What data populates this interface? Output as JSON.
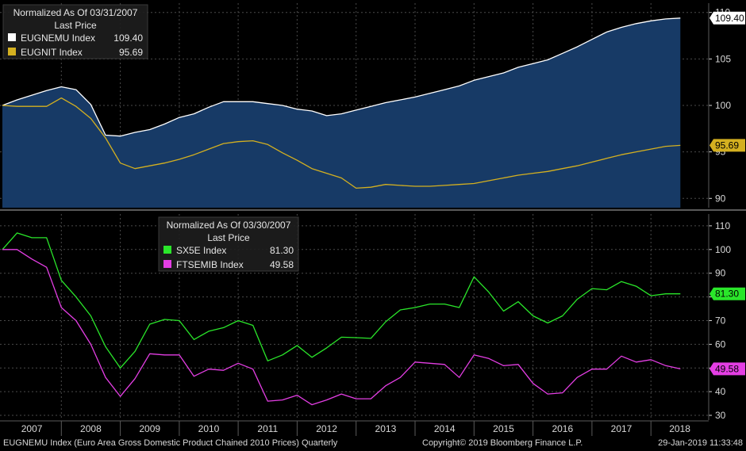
{
  "chart_data": [
    {
      "type": "area",
      "title": "Normalized As Of 03/31/2007",
      "subtitle": "Last Price",
      "ylim": [
        89,
        111
      ],
      "yticks": [
        90,
        95,
        100,
        105,
        110
      ],
      "x": [
        2007.0,
        2007.25,
        2007.5,
        2007.75,
        2008.0,
        2008.25,
        2008.5,
        2008.75,
        2009.0,
        2009.25,
        2009.5,
        2009.75,
        2010.0,
        2010.25,
        2010.5,
        2010.75,
        2011.0,
        2011.25,
        2011.5,
        2011.75,
        2012.0,
        2012.25,
        2012.5,
        2012.75,
        2013.0,
        2013.25,
        2013.5,
        2013.75,
        2014.0,
        2014.25,
        2014.5,
        2014.75,
        2015.0,
        2015.25,
        2015.5,
        2015.75,
        2016.0,
        2016.25,
        2016.5,
        2016.75,
        2017.0,
        2017.25,
        2017.5,
        2017.75,
        2018.0,
        2018.25,
        2018.5
      ],
      "series": [
        {
          "name": "EUGNEMU Index",
          "last": "109.40",
          "color": "#ffffff",
          "fill": "#173a66",
          "values": [
            100.0,
            100.6,
            101.1,
            101.6,
            102.0,
            101.7,
            100.1,
            96.8,
            96.7,
            97.1,
            97.4,
            98.0,
            98.7,
            99.1,
            99.8,
            100.4,
            100.4,
            100.4,
            100.2,
            100.0,
            99.6,
            99.4,
            98.9,
            99.1,
            99.5,
            99.9,
            100.3,
            100.6,
            100.9,
            101.3,
            101.7,
            102.1,
            102.7,
            103.1,
            103.5,
            104.1,
            104.5,
            104.9,
            105.6,
            106.3,
            107.1,
            107.9,
            108.4,
            108.8,
            109.1,
            109.3,
            109.4
          ]
        },
        {
          "name": "EUGNIT Index",
          "last": "95.69",
          "color": "#d4b020",
          "values": [
            100.0,
            99.9,
            99.9,
            99.9,
            100.8,
            99.9,
            98.6,
            96.5,
            93.8,
            93.2,
            93.5,
            93.8,
            94.2,
            94.7,
            95.3,
            95.9,
            96.1,
            96.2,
            95.8,
            94.9,
            94.1,
            93.2,
            92.7,
            92.2,
            91.1,
            91.2,
            91.5,
            91.4,
            91.3,
            91.3,
            91.4,
            91.5,
            91.6,
            91.9,
            92.2,
            92.5,
            92.7,
            92.9,
            93.2,
            93.5,
            93.9,
            94.3,
            94.7,
            95.0,
            95.3,
            95.6,
            95.7
          ]
        }
      ]
    },
    {
      "type": "line",
      "title": "Normalized As Of 03/30/2007",
      "subtitle": "Last Price",
      "ylim": [
        28,
        115
      ],
      "yticks": [
        30,
        40,
        50,
        60,
        70,
        80,
        90,
        100,
        110
      ],
      "x": [
        2007.0,
        2007.25,
        2007.5,
        2007.75,
        2008.0,
        2008.25,
        2008.5,
        2008.75,
        2009.0,
        2009.25,
        2009.5,
        2009.75,
        2010.0,
        2010.25,
        2010.5,
        2010.75,
        2011.0,
        2011.25,
        2011.5,
        2011.75,
        2012.0,
        2012.25,
        2012.5,
        2012.75,
        2013.0,
        2013.25,
        2013.5,
        2013.75,
        2014.0,
        2014.25,
        2014.5,
        2014.75,
        2015.0,
        2015.25,
        2015.5,
        2015.75,
        2016.0,
        2016.25,
        2016.5,
        2016.75,
        2017.0,
        2017.25,
        2017.5,
        2017.75,
        2018.0,
        2018.25,
        2018.5
      ],
      "series": [
        {
          "name": "SX5E Index",
          "last": "81.30",
          "color": "#2ae62a",
          "values": [
            100.0,
            107.0,
            105.0,
            105.0,
            87.0,
            80.0,
            72.0,
            59.0,
            50.0,
            57.0,
            68.5,
            70.5,
            70.0,
            62.0,
            65.5,
            67.0,
            70.0,
            68.0,
            53.0,
            55.5,
            59.5,
            54.5,
            58.5,
            63.0,
            62.8,
            62.5,
            69.5,
            74.5,
            75.5,
            77.0,
            77.0,
            75.5,
            88.5,
            82.0,
            74.0,
            78.0,
            72.0,
            69.0,
            72.0,
            79.0,
            83.5,
            83.0,
            86.5,
            84.5,
            80.5,
            81.3,
            81.3
          ]
        },
        {
          "name": "FTSEMIB Index",
          "last": "49.58",
          "color": "#e43ee4",
          "values": [
            100.0,
            100.0,
            96.0,
            92.5,
            75.5,
            70.0,
            60.0,
            46.0,
            38.0,
            45.5,
            56.0,
            55.5,
            55.5,
            46.5,
            49.5,
            49.0,
            52.0,
            49.5,
            36.0,
            36.5,
            38.5,
            34.5,
            36.5,
            39.0,
            37.0,
            37.0,
            42.5,
            46.0,
            52.5,
            52.0,
            51.5,
            46.0,
            55.5,
            54.0,
            51.0,
            51.5,
            43.5,
            39.0,
            39.5,
            46.0,
            49.5,
            49.5,
            55.0,
            52.5,
            53.5,
            51.0,
            49.6
          ]
        }
      ]
    }
  ],
  "x_axis": {
    "tick_labels": [
      "2007",
      "2008",
      "2009",
      "2010",
      "2011",
      "2012",
      "2013",
      "2014",
      "2015",
      "2016",
      "2017",
      "2018"
    ]
  },
  "footer": {
    "left": "EUGNEMU Index (Euro Area Gross Domestic Product Chained 2010 Prices)  Quarterly",
    "center": "Copyright© 2019 Bloomberg Finance L.P.",
    "right": "29-Jan-2019 11:33:48"
  },
  "colors": {
    "background": "#000000",
    "grid": "#4a4a4a",
    "panel_border": "#5a5a5a",
    "axis_text": "#d8d8d8"
  }
}
